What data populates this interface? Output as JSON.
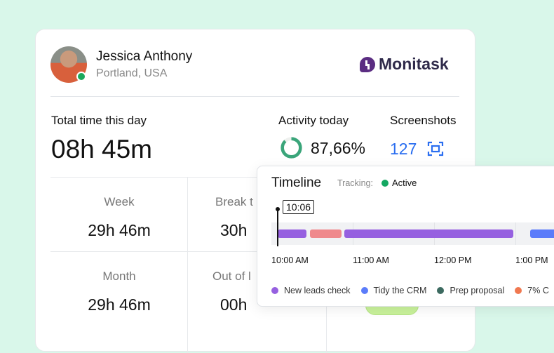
{
  "user": {
    "name": "Jessica Anthony",
    "location": "Portland, USA",
    "status": "online"
  },
  "brand": {
    "name": "Monitask",
    "color": "#5b2d82"
  },
  "summary": {
    "total_label": "Total time this day",
    "total_value": "08h 45m",
    "activity_label": "Activity today",
    "activity_value": "87,66%",
    "activity_fraction": 0.8766,
    "screenshots_label": "Screenshots",
    "screenshots_value": "127"
  },
  "stats": [
    {
      "label": "Week",
      "value": "29h 46m"
    },
    {
      "label": "Break t",
      "value": "30h"
    },
    {
      "label": "Month",
      "value": "29h 46m"
    },
    {
      "label": "Out of l",
      "value": "00h"
    }
  ],
  "timeline": {
    "title": "Timeline",
    "tracking_label": "Tracking:",
    "tracking_status": "Active",
    "cursor_time": "10:06",
    "ticks": [
      "10:00 AM",
      "11:00 AM",
      "12:00 PM",
      "1:00 PM"
    ],
    "legend": [
      {
        "label": "New leads check",
        "color": "#9660e0"
      },
      {
        "label": "Tidy the CRM",
        "color": "#5b7cfa"
      },
      {
        "label": "Prep proposal",
        "color": "#3c6a60"
      },
      {
        "label": "7% C",
        "color": "#f07850"
      }
    ],
    "bar_colors": {
      "purple": "#9660e0",
      "pink": "#ef898c",
      "blue": "#5b7cfa"
    }
  }
}
